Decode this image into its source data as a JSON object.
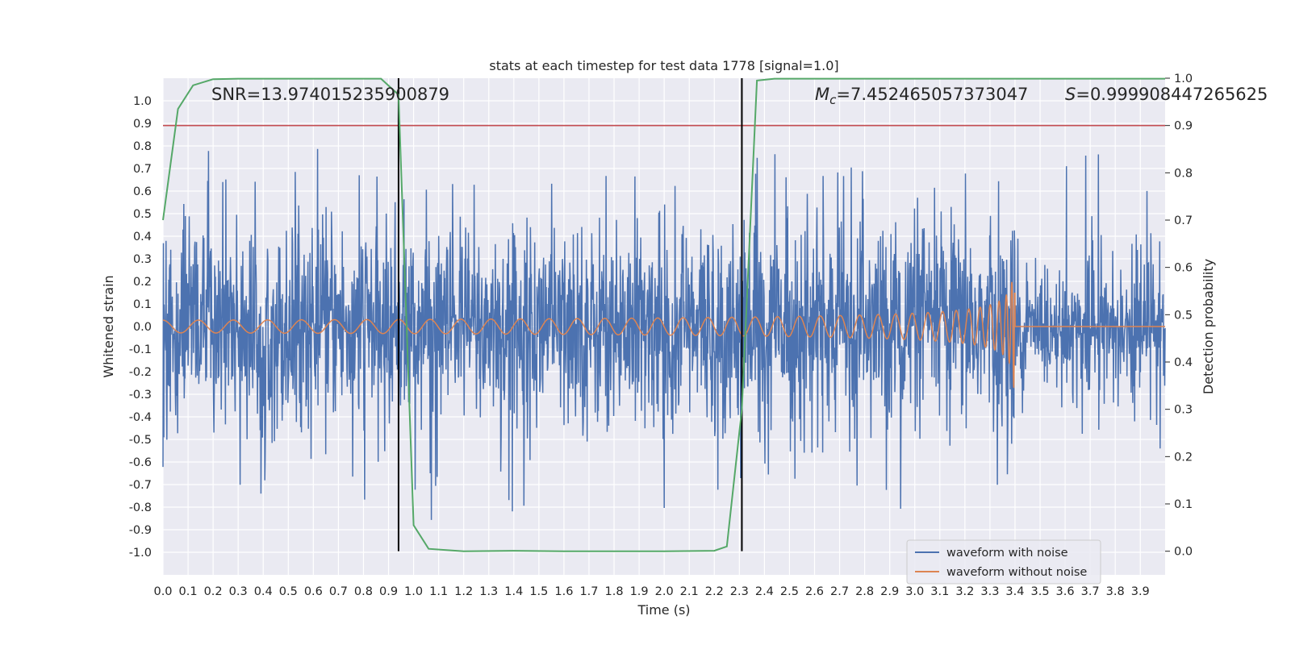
{
  "chart_data": {
    "type": "line",
    "title": "stats at each timestep for test data 1778 [signal=1.0]",
    "xlabel": "Time (s)",
    "ylabel": "Whitened strain",
    "y2label": "Detection probability",
    "xlim": [
      0.0,
      3.999
    ],
    "ylim": [
      -1.1,
      1.1
    ],
    "y2lim": [
      -0.05,
      1.0
    ],
    "x_ticks": [
      "0.0",
      "0.1",
      "0.2",
      "0.3",
      "0.4",
      "0.5",
      "0.6",
      "0.7",
      "0.8",
      "0.9",
      "1.0",
      "1.1",
      "1.2",
      "1.3",
      "1.4",
      "1.5",
      "1.6",
      "1.7",
      "1.8",
      "1.9",
      "2.0",
      "2.1",
      "2.2",
      "2.3",
      "2.4",
      "2.5",
      "2.6",
      "2.7",
      "2.8",
      "2.9",
      "3.0",
      "3.1",
      "3.2",
      "3.3",
      "3.4",
      "3.5",
      "3.6",
      "3.7",
      "3.8",
      "3.9"
    ],
    "y_ticks": [
      "1.0",
      "0.9",
      "0.8",
      "0.7",
      "0.6",
      "0.5",
      "0.4",
      "0.3",
      "0.2",
      "0.1",
      "0.0",
      "-0.1",
      "-0.2",
      "-0.3",
      "-0.4",
      "-0.5",
      "-0.6",
      "-0.7",
      "-0.8",
      "-0.9",
      "-1.0"
    ],
    "y2_ticks": [
      "1.0",
      "0.9",
      "0.8",
      "0.7",
      "0.6",
      "0.5",
      "0.4",
      "0.3",
      "0.2",
      "0.1",
      "0.0"
    ],
    "annotations": {
      "snr": "SNR=13.974015235900879",
      "mc_symbol": "M",
      "mc_sub": "c",
      "mc_value": "=7.452465057373047",
      "s_symbol": "S",
      "s_value": "=0.999908447265625"
    },
    "threshold": {
      "value": 0.9,
      "axis": "y2",
      "color": "#c44e52"
    },
    "vlines": [
      {
        "x": 0.94,
        "ymin": 0.0,
        "ymax": 1.0,
        "color": "#000000"
      },
      {
        "x": 2.31,
        "ymin": 0.0,
        "ymax": 1.0,
        "color": "#000000"
      }
    ],
    "series": [
      {
        "name": "waveform with noise",
        "color": "#4c72b0",
        "description": "whitened noisy strain, sampled at 2048 Hz, amplitude mostly within -0.5..0.5 with spikes up to 1.0"
      },
      {
        "name": "waveform without noise",
        "color": "#dd8452",
        "description": "chirp: amplitude grows from ~0.03 to ~0.4, frequency rises, merger near t=3.4 s"
      },
      {
        "name": "detection probability",
        "color": "#55a868",
        "axis": "y2",
        "x": [
          0.0,
          0.06,
          0.12,
          0.2,
          0.3,
          0.5,
          0.7,
          0.87,
          0.94,
          1.0,
          1.06,
          1.2,
          1.4,
          1.6,
          1.8,
          2.0,
          2.2,
          2.25,
          2.31,
          2.37,
          2.44,
          2.6,
          3.0,
          3.5,
          3.999
        ],
        "values": [
          0.7,
          0.935,
          0.985,
          0.998,
          0.999,
          0.999,
          0.999,
          0.999,
          0.965,
          0.055,
          0.005,
          0.0,
          0.001,
          0.0,
          0.0,
          0.0,
          0.001,
          0.01,
          0.3,
          0.995,
          0.999,
          0.999,
          0.999,
          0.999,
          0.999
        ]
      }
    ],
    "legend": {
      "position": "lower-right",
      "entries": [
        "waveform with noise",
        "waveform without noise"
      ]
    },
    "colors": {
      "axes_bg": "#eaeaf2",
      "grid": "#ffffff",
      "noise": "#4c72b0",
      "clean": "#dd8452",
      "prob": "#55a868",
      "threshold": "#c44e52"
    }
  }
}
